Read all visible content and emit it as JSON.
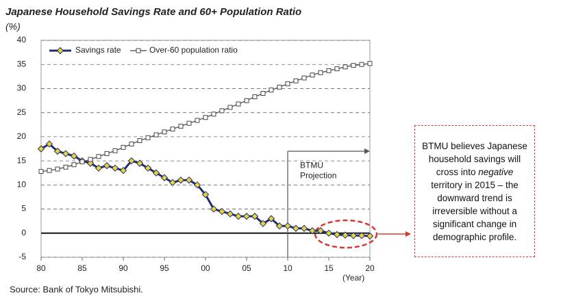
{
  "chart_data": {
    "type": "line",
    "title": "Japanese Household Savings Rate and 60+ Population Ratio",
    "subtitle": "(%)",
    "x_label": "(Year)",
    "x": [
      1980,
      1981,
      1982,
      1983,
      1984,
      1985,
      1986,
      1987,
      1988,
      1989,
      1990,
      1991,
      1992,
      1993,
      1994,
      1995,
      1996,
      1997,
      1998,
      1999,
      2000,
      2001,
      2002,
      2003,
      2004,
      2005,
      2006,
      2007,
      2008,
      2009,
      2010,
      2011,
      2012,
      2013,
      2014,
      2015,
      2016,
      2017,
      2018,
      2019,
      2020
    ],
    "series": [
      {
        "name": "Savings rate",
        "color": "#1f2d6e",
        "marker_color": "#e6d23c",
        "values": [
          17.5,
          18.5,
          17,
          16.5,
          16,
          15,
          14.5,
          13.5,
          14,
          13.5,
          13,
          15,
          14.5,
          13.5,
          12.5,
          11.5,
          10.5,
          11,
          11,
          10,
          8,
          5,
          4.5,
          4,
          3.5,
          3.5,
          3.5,
          2,
          3,
          1.5,
          1.5,
          1,
          1,
          0.5,
          0.5,
          0,
          -0.3,
          -0.4,
          -0.5,
          -0.5,
          -0.6
        ]
      },
      {
        "name": "Over-60 population ratio",
        "color": "#444444",
        "values": [
          12.8,
          13,
          13.3,
          13.7,
          14.2,
          14.8,
          15.3,
          15.9,
          16.5,
          17.1,
          17.8,
          18.5,
          19.2,
          19.8,
          20.4,
          21,
          21.6,
          22.2,
          22.8,
          23.4,
          24,
          24.7,
          25.4,
          26.1,
          26.8,
          27.5,
          28.3,
          29,
          29.7,
          30.3,
          31,
          31.6,
          32.2,
          32.8,
          33.3,
          33.7,
          34.1,
          34.5,
          34.8,
          35,
          35.2
        ]
      }
    ],
    "xlim": [
      1980,
      2020
    ],
    "xticks": [
      {
        "value": 1980,
        "label": "80"
      },
      {
        "value": 1985,
        "label": "85"
      },
      {
        "value": 1990,
        "label": "90"
      },
      {
        "value": 1995,
        "label": "95"
      },
      {
        "value": 2000,
        "label": "00"
      },
      {
        "value": 2005,
        "label": "05"
      },
      {
        "value": 2010,
        "label": "10"
      },
      {
        "value": 2015,
        "label": "15"
      },
      {
        "value": 2020,
        "label": "20"
      }
    ],
    "ylim": [
      -5,
      40
    ],
    "yticks": [
      -5,
      0,
      5,
      10,
      15,
      20,
      25,
      30,
      35,
      40
    ],
    "grid": true,
    "projection_start": 2010,
    "projection_label": [
      "BTMU",
      "Projection"
    ],
    "callout": [
      "BTMU believes Japanese household savings will cross into ",
      "negative",
      " territory in 2015 – the downward trend is irreversible without a significant change in demographic profile."
    ],
    "source": "Source: Bank of Tokyo Mitsubishi."
  }
}
